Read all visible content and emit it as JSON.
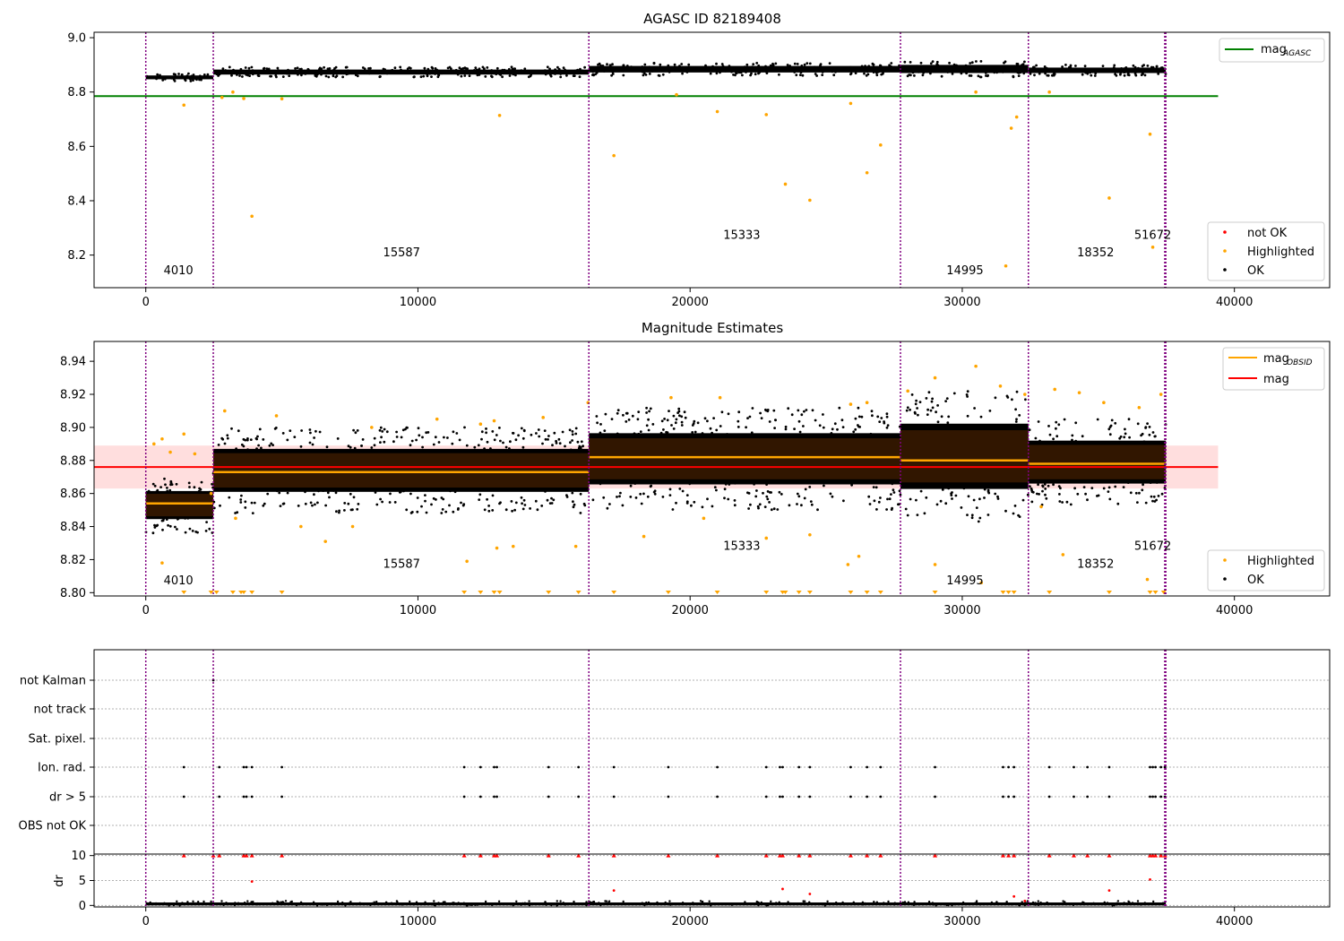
{
  "chart_data": [
    {
      "type": "scatter",
      "title": "AGASC ID 82189408",
      "xlim": [
        -1900,
        43500
      ],
      "ylim": [
        8.08,
        9.02
      ],
      "xticks": [
        0,
        10000,
        20000,
        30000,
        40000
      ],
      "xtick_labels": [
        "0",
        "10000",
        "20000",
        "30000",
        "40000"
      ],
      "yticks": [
        8.2,
        8.4,
        8.6,
        8.8,
        9.0
      ],
      "ytick_labels": [
        "8.2",
        "8.4",
        "8.6",
        "8.8",
        "9.0"
      ],
      "grid": false,
      "legend_upper": {
        "placement": "upper-right",
        "entries": [
          {
            "label": "mag",
            "sub": "AGASC",
            "color": "#008000",
            "marker": "line"
          }
        ]
      },
      "legend_lower": {
        "placement": "lower-right",
        "entries": [
          {
            "label": "not OK",
            "color": "#ff0000",
            "marker": "dot"
          },
          {
            "label": "Highlighted",
            "color": "#ffa500",
            "marker": "dot"
          },
          {
            "label": "OK",
            "color": "#000000",
            "marker": "dot"
          }
        ]
      },
      "reference_line": {
        "name": "mag_AGASC",
        "y": 8.785,
        "x": [
          -1900,
          39400
        ],
        "color": "#008000"
      },
      "segment_labels": [
        {
          "text": "4010",
          "x": 1200,
          "y": 8.13
        },
        {
          "text": "15587",
          "x": 9400,
          "y": 8.195
        },
        {
          "text": "15333",
          "x": 21900,
          "y": 8.26
        },
        {
          "text": "14995",
          "x": 30100,
          "y": 8.13
        },
        {
          "text": "18352",
          "x": 34900,
          "y": 8.195
        },
        {
          "text": "51672",
          "x": 37000,
          "y": 8.26
        }
      ],
      "ok_bands": [
        {
          "x0": 0,
          "x1": 2480,
          "lo": 8.84,
          "hi": 8.868
        },
        {
          "x0": 2480,
          "x1": 16280,
          "lo": 8.855,
          "hi": 8.892
        },
        {
          "x0": 16280,
          "x1": 27730,
          "lo": 8.86,
          "hi": 8.908
        },
        {
          "x0": 27730,
          "x1": 32430,
          "lo": 8.855,
          "hi": 8.915
        },
        {
          "x0": 32430,
          "x1": 37480,
          "lo": 8.86,
          "hi": 8.9
        }
      ],
      "highlighted_points": [
        [
          1400,
          8.752
        ],
        [
          3900,
          8.343
        ],
        [
          5000,
          8.775
        ],
        [
          13000,
          8.714
        ],
        [
          17200,
          8.566
        ],
        [
          21000,
          8.728
        ],
        [
          22800,
          8.717
        ],
        [
          23500,
          8.461
        ],
        [
          24400,
          8.402
        ],
        [
          25900,
          8.758
        ],
        [
          26500,
          8.503
        ],
        [
          27000,
          8.605
        ],
        [
          31600,
          8.16
        ],
        [
          31800,
          8.667
        ],
        [
          32000,
          8.708
        ],
        [
          35400,
          8.41
        ],
        [
          36900,
          8.645
        ],
        [
          37000,
          8.229
        ],
        [
          2800,
          8.78
        ],
        [
          3200,
          8.8
        ],
        [
          3600,
          8.776
        ],
        [
          19500,
          8.79
        ],
        [
          30500,
          8.8
        ],
        [
          33200,
          8.8
        ]
      ]
    },
    {
      "type": "scatter",
      "title": "Magnitude Estimates",
      "xlim": [
        -1900,
        43500
      ],
      "ylim": [
        8.798,
        8.952
      ],
      "xticks": [
        0,
        10000,
        20000,
        30000,
        40000
      ],
      "xtick_labels": [
        "0",
        "10000",
        "20000",
        "30000",
        "40000"
      ],
      "yticks": [
        8.8,
        8.82,
        8.84,
        8.86,
        8.88,
        8.9,
        8.92,
        8.94
      ],
      "ytick_labels": [
        "8.80",
        "8.82",
        "8.84",
        "8.86",
        "8.88",
        "8.90",
        "8.92",
        "8.94"
      ],
      "grid": false,
      "legend_upper": {
        "placement": "upper-right",
        "entries": [
          {
            "label": "mag",
            "sub": "OBSID",
            "color": "#ffa500",
            "marker": "line"
          },
          {
            "label": "mag",
            "sub": "",
            "color": "#ff0000",
            "marker": "line"
          }
        ]
      },
      "legend_lower": {
        "placement": "lower-right",
        "entries": [
          {
            "label": "Highlighted",
            "color": "#ffa500",
            "marker": "dot"
          },
          {
            "label": "OK",
            "color": "#000000",
            "marker": "dot"
          }
        ]
      },
      "mag": {
        "y": 8.876,
        "band": [
          8.863,
          8.889
        ],
        "x": [
          -1900,
          39400
        ]
      },
      "obsid_mags": [
        {
          "x0": 0,
          "x1": 2480,
          "y": 8.854
        },
        {
          "x0": 2480,
          "x1": 16280,
          "y": 8.873
        },
        {
          "x0": 16280,
          "x1": 27730,
          "y": 8.882
        },
        {
          "x0": 27730,
          "x1": 32430,
          "y": 8.88
        },
        {
          "x0": 32430,
          "x1": 37480,
          "y": 8.878
        }
      ],
      "segment_labels": [
        {
          "text": "4010",
          "x": 1200,
          "y": 8.805
        },
        {
          "text": "15587",
          "x": 9400,
          "y": 8.815
        },
        {
          "text": "15333",
          "x": 21900,
          "y": 8.826
        },
        {
          "text": "14995",
          "x": 30100,
          "y": 8.805
        },
        {
          "text": "18352",
          "x": 34900,
          "y": 8.815
        },
        {
          "text": "51672",
          "x": 37000,
          "y": 8.826
        }
      ],
      "ok_bands": [
        {
          "x0": 0,
          "x1": 2480,
          "lo": 8.836,
          "hi": 8.87
        },
        {
          "x0": 2480,
          "x1": 16280,
          "lo": 8.848,
          "hi": 8.9
        },
        {
          "x0": 16280,
          "x1": 27730,
          "lo": 8.85,
          "hi": 8.912
        },
        {
          "x0": 27730,
          "x1": 32430,
          "lo": 8.843,
          "hi": 8.922
        },
        {
          "x0": 32430,
          "x1": 37480,
          "lo": 8.853,
          "hi": 8.905
        }
      ],
      "highlighted_points": [
        [
          300,
          8.89
        ],
        [
          600,
          8.893
        ],
        [
          900,
          8.885
        ],
        [
          1400,
          8.896
        ],
        [
          1800,
          8.884
        ],
        [
          600,
          8.818
        ],
        [
          2900,
          8.91
        ],
        [
          4800,
          8.907
        ],
        [
          8300,
          8.9
        ],
        [
          10700,
          8.905
        ],
        [
          12300,
          8.902
        ],
        [
          12800,
          8.904
        ],
        [
          14600,
          8.906
        ],
        [
          16250,
          8.915
        ],
        [
          19300,
          8.918
        ],
        [
          21100,
          8.918
        ],
        [
          25900,
          8.914
        ],
        [
          26500,
          8.915
        ],
        [
          28000,
          8.922
        ],
        [
          29000,
          8.93
        ],
        [
          30500,
          8.937
        ],
        [
          31400,
          8.925
        ],
        [
          32300,
          8.92
        ],
        [
          33400,
          8.923
        ],
        [
          34300,
          8.921
        ],
        [
          35200,
          8.915
        ],
        [
          36500,
          8.912
        ],
        [
          37300,
          8.92
        ],
        [
          5700,
          8.84
        ],
        [
          6600,
          8.831
        ],
        [
          7600,
          8.84
        ],
        [
          11800,
          8.819
        ],
        [
          12900,
          8.827
        ],
        [
          13500,
          8.828
        ],
        [
          15800,
          8.828
        ],
        [
          18300,
          8.834
        ],
        [
          22800,
          8.833
        ],
        [
          24400,
          8.835
        ],
        [
          25800,
          8.817
        ],
        [
          26200,
          8.822
        ],
        [
          29000,
          8.817
        ],
        [
          30700,
          8.806
        ],
        [
          33700,
          8.823
        ],
        [
          36800,
          8.808
        ],
        [
          2400,
          8.86
        ],
        [
          3300,
          8.845
        ],
        [
          20500,
          8.845
        ],
        [
          32900,
          8.852
        ]
      ],
      "clipped_markers_x": [
        1400,
        2400,
        2600,
        3200,
        3500,
        3600,
        3900,
        5000,
        11700,
        12300,
        12800,
        13000,
        14800,
        15900,
        17200,
        19200,
        21000,
        22800,
        23400,
        23500,
        24000,
        24400,
        25900,
        26500,
        27000,
        29000,
        31500,
        31700,
        31900,
        33200,
        35400,
        36900,
        37100,
        37400
      ]
    },
    {
      "type": "scatter",
      "title": "",
      "xlim": [
        -1900,
        43500
      ],
      "xticks": [
        0,
        10000,
        20000,
        30000,
        40000
      ],
      "xtick_labels": [
        "0",
        "10000",
        "20000",
        "30000",
        "40000"
      ],
      "flag_rows": [
        {
          "label": "not Kalman",
          "points_x": [
            2480
          ]
        },
        {
          "label": "not track",
          "points_x": []
        },
        {
          "label": "Sat. pixel.",
          "points_x": []
        },
        {
          "label": "Ion. rad.",
          "points_x": [
            1400,
            2700,
            3600,
            3700,
            3900,
            5000,
            11700,
            12300,
            12800,
            12900,
            14800,
            15900,
            17200,
            19200,
            21000,
            22800,
            23300,
            23400,
            24000,
            24400,
            25900,
            26500,
            27000,
            29000,
            31500,
            31700,
            31900,
            33200,
            34100,
            34600,
            35400,
            36900,
            37000,
            37100,
            37300,
            37450
          ]
        },
        {
          "label": "dr > 5",
          "points_x": [
            1400,
            2700,
            3600,
            3700,
            3900,
            5000,
            11700,
            12300,
            12800,
            12900,
            14800,
            15900,
            17200,
            19200,
            21000,
            22800,
            23300,
            23400,
            24000,
            24400,
            25900,
            26500,
            27000,
            29000,
            31500,
            31700,
            31900,
            33200,
            34100,
            34600,
            35400,
            36900,
            37000,
            37100,
            37300,
            37450
          ]
        },
        {
          "label": "OBS not OK",
          "points_x": []
        }
      ],
      "dr": {
        "ylabel": "dr",
        "ylim": [
          -0.3,
          10.3
        ],
        "yticks": [
          0,
          5,
          10
        ],
        "ytick_labels": [
          "0",
          "5",
          "10"
        ],
        "ok_x": [
          0,
          37480
        ],
        "ok_band": [
          0.0,
          0.6
        ],
        "clipped_x": [
          1400,
          2480,
          2700,
          3600,
          3700,
          3900,
          5000,
          11700,
          12300,
          12800,
          12900,
          14800,
          15900,
          17200,
          19200,
          21000,
          22800,
          23300,
          23400,
          24000,
          24400,
          25900,
          26500,
          27000,
          29000,
          31500,
          31700,
          31900,
          33200,
          34100,
          34600,
          35400,
          36900,
          37000,
          37100,
          37300,
          37450
        ],
        "outliers": [
          [
            3900,
            4.8
          ],
          [
            17200,
            3.0
          ],
          [
            23400,
            3.3
          ],
          [
            24400,
            2.3
          ],
          [
            35400,
            3.0
          ],
          [
            36900,
            5.2
          ],
          [
            31900,
            1.8
          ],
          [
            32300,
            0.9
          ]
        ]
      }
    }
  ],
  "segment_boundaries_x": [
    0,
    2480,
    16280,
    27730,
    32430,
    37440,
    37480
  ],
  "colors": {
    "ok": "#000000",
    "highlighted": "#ffa500",
    "not_ok": "#ff0000",
    "agasc_line": "#008000",
    "mag_line": "#ff0000",
    "obsid_line": "#ffa500",
    "mag_band": "#ffdede",
    "boundary": "#800080"
  }
}
